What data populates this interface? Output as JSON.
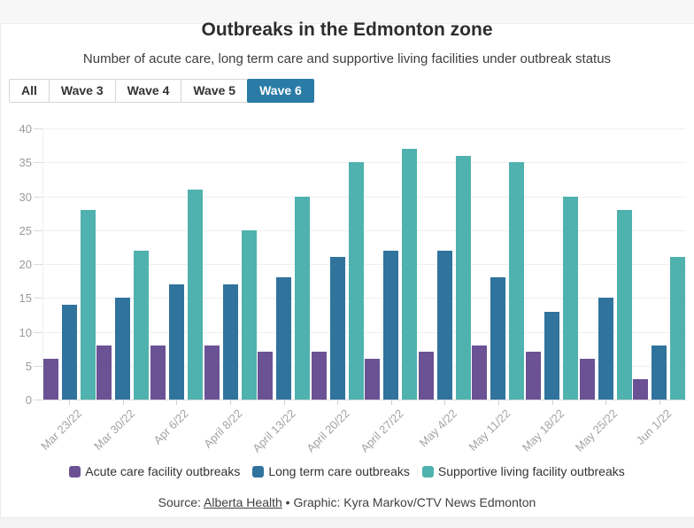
{
  "header": {
    "title": "Outbreaks in the Edmonton zone",
    "subtitle": "Number of acute care, long term care and supportive living facilities under outbreak status"
  },
  "tabs": [
    {
      "label": "All",
      "active": false
    },
    {
      "label": "Wave 3",
      "active": false
    },
    {
      "label": "Wave 4",
      "active": false
    },
    {
      "label": "Wave 5",
      "active": false
    },
    {
      "label": "Wave 6",
      "active": true
    }
  ],
  "colors": {
    "active_tab": "#2a7ca7",
    "acute_care": "#6a5294",
    "long_term_care": "#30739d",
    "supportive_living": "#4fb2ae"
  },
  "chart_data": {
    "type": "bar",
    "title": "Outbreaks in the Edmonton zone",
    "categories": [
      "Mar 23/22",
      "Mar 30/22",
      "Apr 6/22",
      "April 8/22",
      "April 13/22",
      "April 20/22",
      "April 27/22",
      "May 4/22",
      "May 11/22",
      "May 18/22",
      "May 25/22",
      "Jun 1/22"
    ],
    "series": [
      {
        "name": "Acute care facility outbreaks",
        "color": "#6a5294",
        "values": [
          6,
          8,
          8,
          8,
          7,
          7,
          6,
          7,
          8,
          7,
          6,
          3
        ]
      },
      {
        "name": "Long term care outbreaks",
        "color": "#30739d",
        "values": [
          14,
          15,
          17,
          17,
          18,
          21,
          22,
          22,
          18,
          13,
          15,
          8
        ]
      },
      {
        "name": "Supportive living facility outbreaks",
        "color": "#4fb2ae",
        "values": [
          28,
          22,
          31,
          25,
          30,
          35,
          37,
          36,
          35,
          30,
          28,
          21
        ]
      }
    ],
    "xlabel": "",
    "ylabel": "",
    "ylim": [
      0,
      40
    ],
    "ytick_step": 5,
    "grid": true,
    "legend_position": "bottom"
  },
  "footer": {
    "source_label": "Source: ",
    "source_link": "Alberta Health",
    "separator": " • ",
    "credit": "Graphic: Kyra Markov/CTV News Edmonton"
  }
}
